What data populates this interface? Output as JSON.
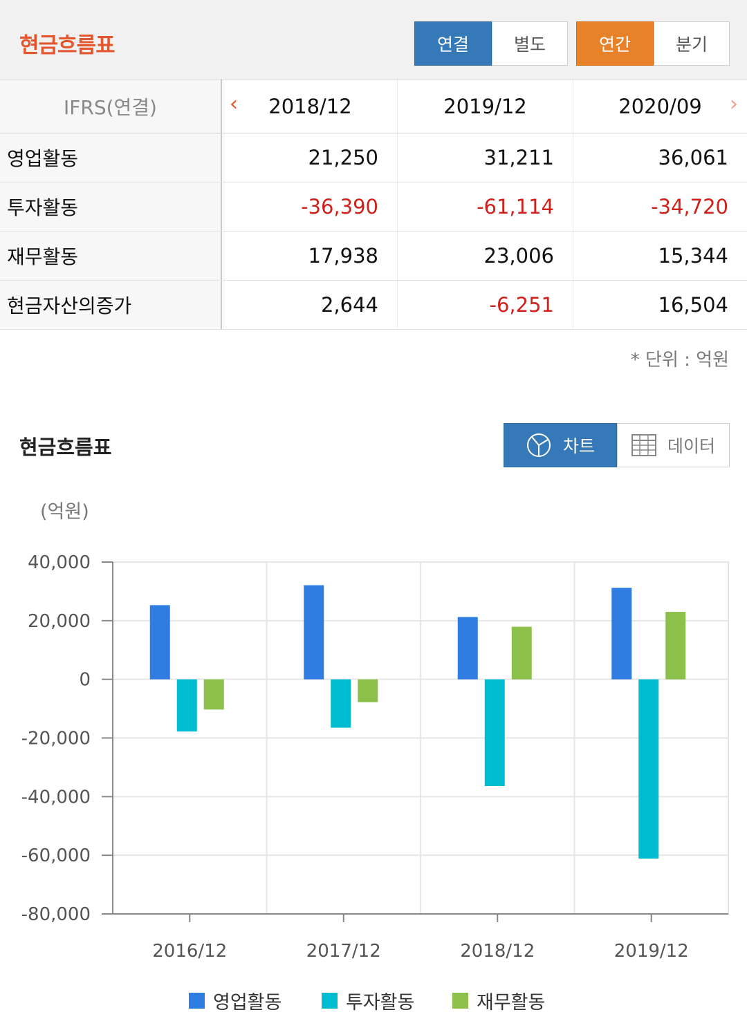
{
  "header": {
    "title": "현금흐름표",
    "toggle_consol": [
      "연결",
      "별도"
    ],
    "toggle_period": [
      "연간",
      "분기"
    ]
  },
  "table": {
    "corner_label": "IFRS(연결)",
    "periods": [
      "2018/12",
      "2019/12",
      "2020/09"
    ],
    "rows": [
      {
        "label": "영업활동",
        "values": [
          "21,250",
          "31,211",
          "36,061"
        ],
        "neg": [
          false,
          false,
          false
        ]
      },
      {
        "label": "투자활동",
        "values": [
          "-36,390",
          "-61,114",
          "-34,720"
        ],
        "neg": [
          true,
          true,
          true
        ]
      },
      {
        "label": "재무활동",
        "values": [
          "17,938",
          "23,006",
          "15,344"
        ],
        "neg": [
          false,
          false,
          false
        ]
      },
      {
        "label": "현금자산의증가",
        "values": [
          "2,644",
          "-6,251",
          "16,504"
        ],
        "neg": [
          false,
          true,
          false
        ]
      }
    ],
    "unit_note": "* 단위 : 억원"
  },
  "chart_section": {
    "title": "현금흐름표",
    "chart_tab": "차트",
    "data_tab": "데이터",
    "y_unit": "(억원)"
  },
  "colors": {
    "operating": "#2f7de1",
    "investing": "#00bcd0",
    "financing": "#8cc04a",
    "accent": "#e4572e",
    "blue_btn": "#3679b8",
    "orange_btn": "#e8822a",
    "negative": "#d0201b"
  },
  "chart_data": {
    "type": "bar",
    "categories": [
      "2016/12",
      "2017/12",
      "2018/12",
      "2019/12"
    ],
    "series": [
      {
        "name": "영업활동",
        "values": [
          25300,
          32100,
          21250,
          31211
        ]
      },
      {
        "name": "투자활동",
        "values": [
          -17800,
          -16500,
          -36390,
          -61114
        ]
      },
      {
        "name": "재무활동",
        "values": [
          -10300,
          -7800,
          17938,
          23006
        ]
      }
    ],
    "ylim": [
      -80000,
      40000
    ],
    "yticks": [
      "40,000",
      "20,000",
      "0",
      "-20,000",
      "-40,000",
      "-60,000",
      "-80,000"
    ],
    "legend": "bottom",
    "grid": true
  }
}
